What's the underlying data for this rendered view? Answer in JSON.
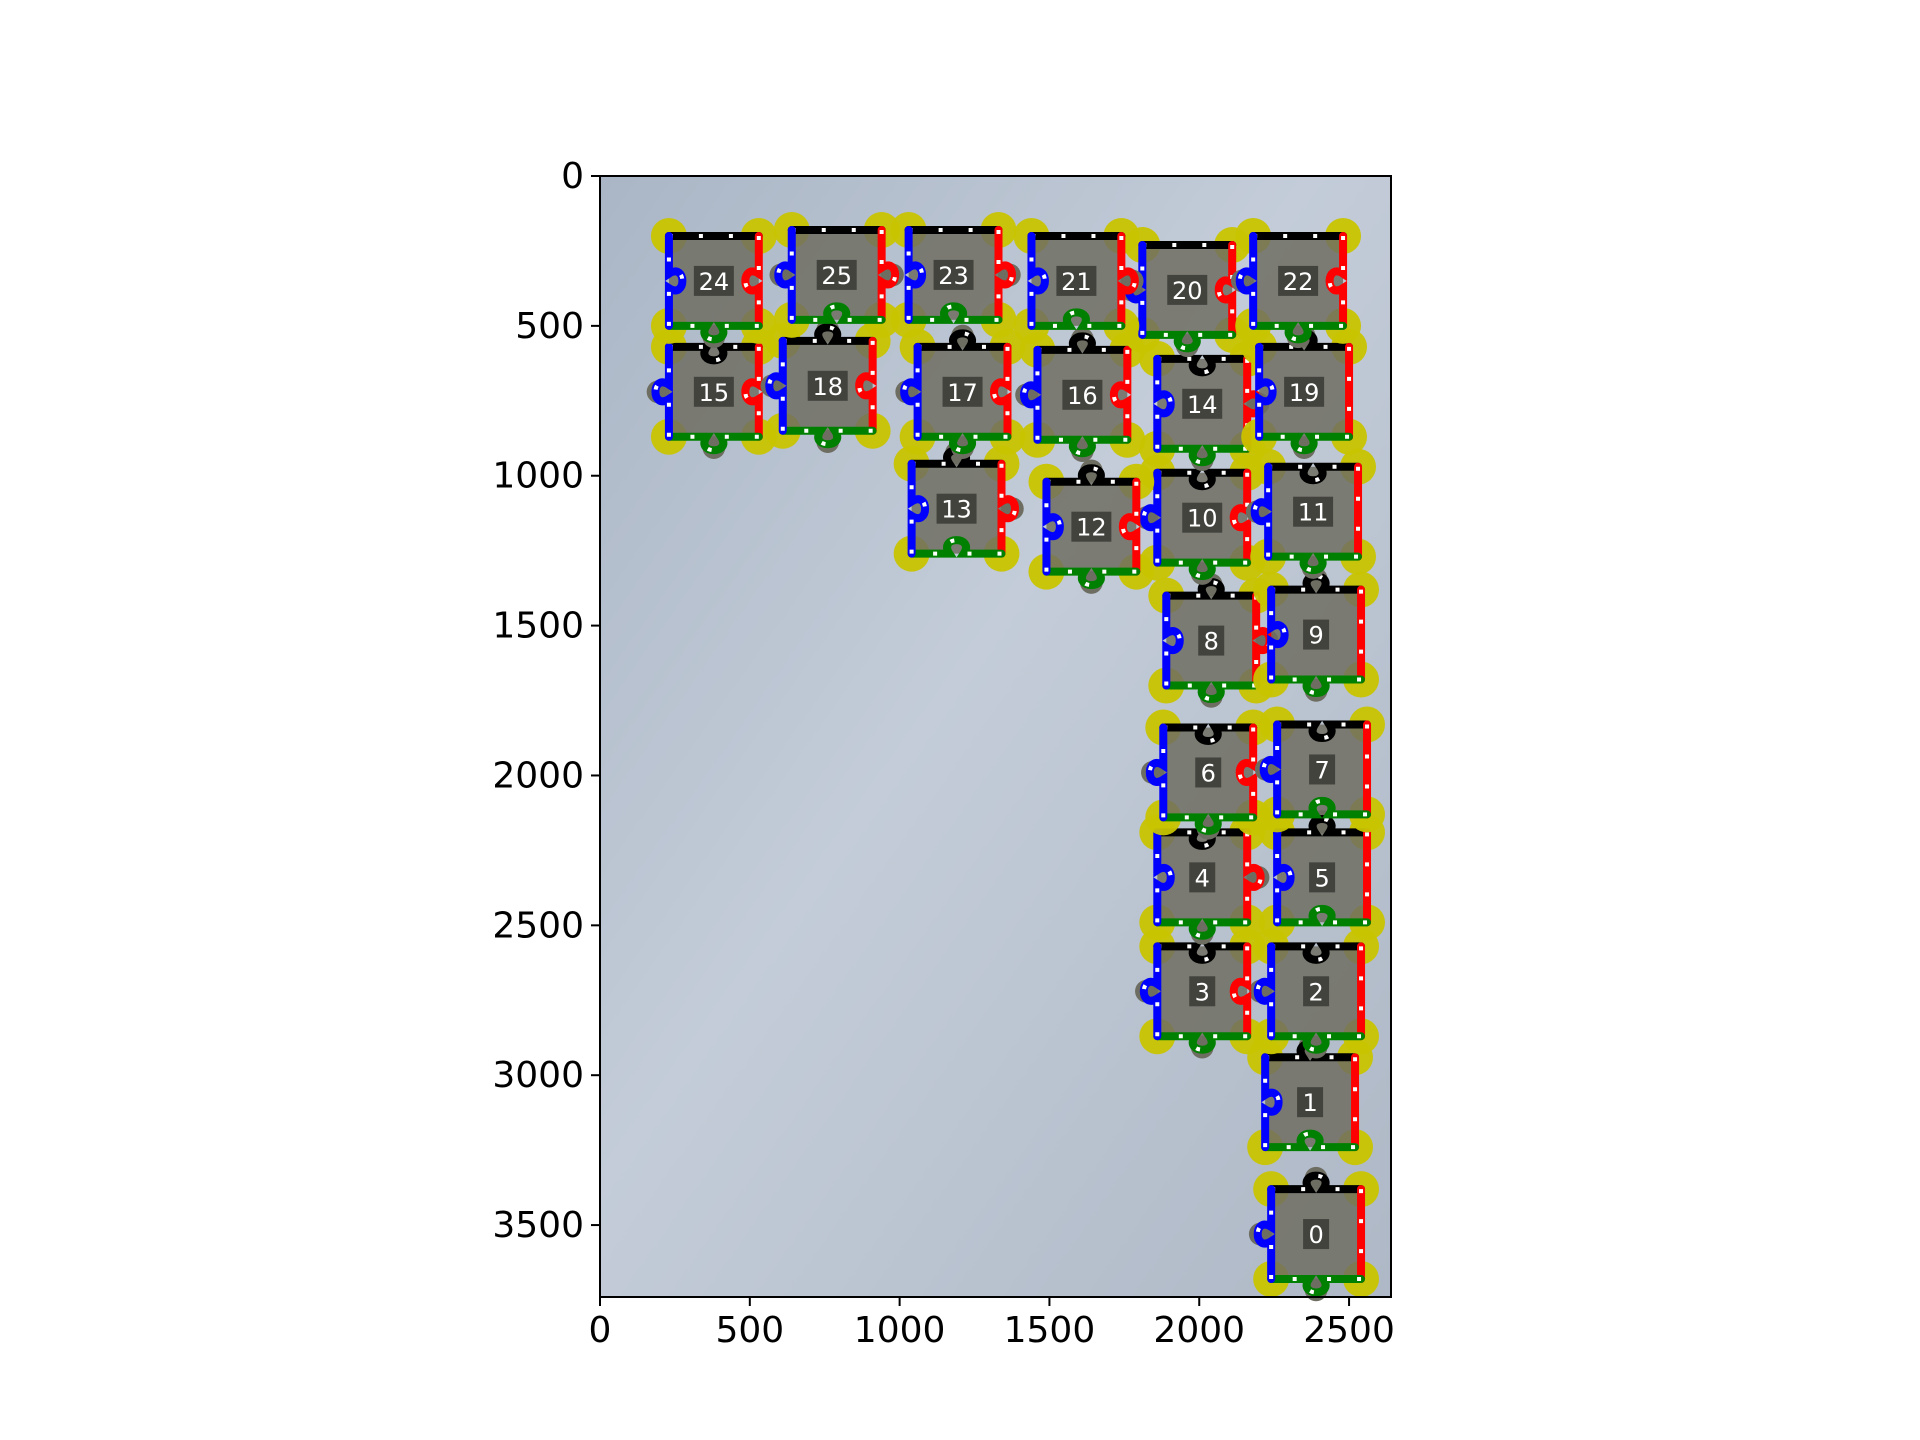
{
  "chart_data": {
    "type": "scatter",
    "title": "",
    "xlabel": "",
    "ylabel": "",
    "xlim": [
      0,
      2640
    ],
    "ylim": [
      3740,
      0
    ],
    "y_inverted": true,
    "grid": false,
    "x_ticks": [
      0,
      500,
      1000,
      1500,
      2000,
      2500
    ],
    "y_ticks": [
      0,
      500,
      1000,
      1500,
      2000,
      2500,
      3000,
      3500
    ],
    "background_photo_color": "#b8c2d0",
    "marker_color": "#c8c400",
    "edge_colors": {
      "left": "#0000ff",
      "right": "#ff0000",
      "top": "#000000",
      "bottom": "#008000"
    },
    "pieces": [
      {
        "id": "0",
        "x": 2390,
        "y": 3530,
        "tabs": {
          "top": "out",
          "bottom": "out",
          "left": "out",
          "right": "flat"
        }
      },
      {
        "id": "1",
        "x": 2370,
        "y": 3090,
        "tabs": {
          "top": "out",
          "bottom": "in",
          "left": "in",
          "right": "flat"
        }
      },
      {
        "id": "2",
        "x": 2390,
        "y": 2720,
        "tabs": {
          "top": "in",
          "bottom": "out",
          "left": "out",
          "right": "flat"
        }
      },
      {
        "id": "3",
        "x": 2010,
        "y": 2720,
        "tabs": {
          "top": "in",
          "bottom": "out",
          "left": "out",
          "right": "in"
        }
      },
      {
        "id": "4",
        "x": 2010,
        "y": 2340,
        "tabs": {
          "top": "in",
          "bottom": "out",
          "left": "in",
          "right": "out"
        }
      },
      {
        "id": "5",
        "x": 2410,
        "y": 2340,
        "tabs": {
          "top": "out",
          "bottom": "in",
          "left": "in",
          "right": "flat"
        }
      },
      {
        "id": "6",
        "x": 2030,
        "y": 1990,
        "tabs": {
          "top": "in",
          "bottom": "out",
          "left": "out",
          "right": "in"
        }
      },
      {
        "id": "7",
        "x": 2410,
        "y": 1980,
        "tabs": {
          "top": "in",
          "bottom": "in",
          "left": "out",
          "right": "flat"
        }
      },
      {
        "id": "8",
        "x": 2040,
        "y": 1550,
        "tabs": {
          "top": "out",
          "bottom": "out",
          "left": "in",
          "right": "out"
        }
      },
      {
        "id": "9",
        "x": 2390,
        "y": 1530,
        "tabs": {
          "top": "out",
          "bottom": "out",
          "left": "in",
          "right": "flat"
        }
      },
      {
        "id": "10",
        "x": 2010,
        "y": 1140,
        "tabs": {
          "top": "in",
          "bottom": "out",
          "left": "out",
          "right": "in"
        }
      },
      {
        "id": "11",
        "x": 2380,
        "y": 1120,
        "tabs": {
          "top": "in",
          "bottom": "out",
          "left": "out",
          "right": "flat"
        }
      },
      {
        "id": "12",
        "x": 1640,
        "y": 1170,
        "tabs": {
          "top": "out",
          "bottom": "out",
          "left": "in",
          "right": "in"
        }
      },
      {
        "id": "13",
        "x": 1190,
        "y": 1110,
        "tabs": {
          "top": "out",
          "bottom": "in",
          "left": "in",
          "right": "out"
        }
      },
      {
        "id": "14",
        "x": 2010,
        "y": 760,
        "tabs": {
          "top": "in",
          "bottom": "out",
          "left": "in",
          "right": "out"
        }
      },
      {
        "id": "15",
        "x": 380,
        "y": 720,
        "tabs": {
          "top": "in",
          "bottom": "out",
          "left": "out",
          "right": "in"
        }
      },
      {
        "id": "16",
        "x": 1610,
        "y": 730,
        "tabs": {
          "top": "out",
          "bottom": "out",
          "left": "out",
          "right": "in"
        }
      },
      {
        "id": "17",
        "x": 1210,
        "y": 720,
        "tabs": {
          "top": "out",
          "bottom": "out",
          "left": "out",
          "right": "in"
        }
      },
      {
        "id": "18",
        "x": 760,
        "y": 700,
        "tabs": {
          "top": "out",
          "bottom": "out",
          "left": "out",
          "right": "in"
        }
      },
      {
        "id": "19",
        "x": 2350,
        "y": 720,
        "tabs": {
          "top": "out",
          "bottom": "out",
          "left": "in",
          "right": "flat"
        }
      },
      {
        "id": "20",
        "x": 1960,
        "y": 380,
        "tabs": {
          "top": "flat",
          "bottom": "out",
          "left": "out",
          "right": "in"
        }
      },
      {
        "id": "21",
        "x": 1590,
        "y": 350,
        "tabs": {
          "top": "flat",
          "bottom": "in",
          "left": "in",
          "right": "out"
        }
      },
      {
        "id": "22",
        "x": 2330,
        "y": 350,
        "tabs": {
          "top": "flat",
          "bottom": "out",
          "left": "out",
          "right": "in"
        }
      },
      {
        "id": "23",
        "x": 1180,
        "y": 330,
        "tabs": {
          "top": "flat",
          "bottom": "in",
          "left": "in",
          "right": "out"
        }
      },
      {
        "id": "24",
        "x": 380,
        "y": 350,
        "tabs": {
          "top": "flat",
          "bottom": "out",
          "left": "in",
          "right": "in"
        }
      },
      {
        "id": "25",
        "x": 790,
        "y": 330,
        "tabs": {
          "top": "flat",
          "bottom": "in",
          "left": "out",
          "right": "out"
        }
      }
    ]
  }
}
